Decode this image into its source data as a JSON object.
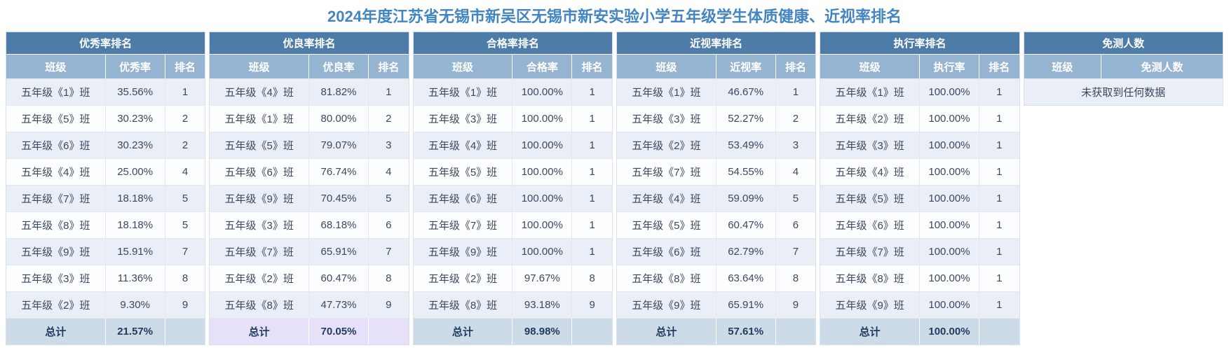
{
  "page": {
    "title": "2024年度江苏省无锡市新吴区无锡市新安实验小学五年级学生体质健康、近视率排名"
  },
  "colors": {
    "title_text": "#4285c2",
    "table_title_bg": "#4d7ca9",
    "column_header_bg": "#94b4d1",
    "row_odd_bg": "#e9eef7",
    "row_even_bg": "#fcfdfe",
    "total_row_bg_blue": "#ccdbe7",
    "total_row_bg_purple": "#e6e1f9"
  },
  "tables": [
    {
      "title": "优秀率排名",
      "columns": [
        "班级",
        "优秀率",
        "排名"
      ],
      "rows": [
        [
          "五年级《1》班",
          "35.56%",
          "1"
        ],
        [
          "五年级《5》班",
          "30.23%",
          "2"
        ],
        [
          "五年级《6》班",
          "30.23%",
          "2"
        ],
        [
          "五年级《4》班",
          "25.00%",
          "4"
        ],
        [
          "五年级《7》班",
          "18.18%",
          "5"
        ],
        [
          "五年级《8》班",
          "18.18%",
          "5"
        ],
        [
          "五年级《9》班",
          "15.91%",
          "7"
        ],
        [
          "五年级《3》班",
          "11.36%",
          "8"
        ],
        [
          "五年级《2》班",
          "9.30%",
          "9"
        ]
      ],
      "total": {
        "label": "总计",
        "value": "21.57%",
        "rank": ""
      },
      "total_variant": "blue"
    },
    {
      "title": "优良率排名",
      "columns": [
        "班级",
        "优良率",
        "排名"
      ],
      "rows": [
        [
          "五年级《4》班",
          "81.82%",
          "1"
        ],
        [
          "五年级《1》班",
          "80.00%",
          "2"
        ],
        [
          "五年级《5》班",
          "79.07%",
          "3"
        ],
        [
          "五年级《6》班",
          "76.74%",
          "4"
        ],
        [
          "五年级《9》班",
          "70.45%",
          "5"
        ],
        [
          "五年级《3》班",
          "68.18%",
          "6"
        ],
        [
          "五年级《7》班",
          "65.91%",
          "7"
        ],
        [
          "五年级《2》班",
          "60.47%",
          "8"
        ],
        [
          "五年级《8》班",
          "47.73%",
          "9"
        ]
      ],
      "total": {
        "label": "总计",
        "value": "70.05%",
        "rank": ""
      },
      "total_variant": "purple"
    },
    {
      "title": "合格率排名",
      "columns": [
        "班级",
        "合格率",
        "排名"
      ],
      "rows": [
        [
          "五年级《1》班",
          "100.00%",
          "1"
        ],
        [
          "五年级《3》班",
          "100.00%",
          "1"
        ],
        [
          "五年级《4》班",
          "100.00%",
          "1"
        ],
        [
          "五年级《5》班",
          "100.00%",
          "1"
        ],
        [
          "五年级《6》班",
          "100.00%",
          "1"
        ],
        [
          "五年级《7》班",
          "100.00%",
          "1"
        ],
        [
          "五年级《9》班",
          "100.00%",
          "1"
        ],
        [
          "五年级《2》班",
          "97.67%",
          "8"
        ],
        [
          "五年级《8》班",
          "93.18%",
          "9"
        ]
      ],
      "total": {
        "label": "总计",
        "value": "98.98%",
        "rank": ""
      },
      "total_variant": "blue"
    },
    {
      "title": "近视率排名",
      "columns": [
        "班级",
        "近视率",
        "排名"
      ],
      "rows": [
        [
          "五年级《1》班",
          "46.67%",
          "1"
        ],
        [
          "五年级《3》班",
          "52.27%",
          "2"
        ],
        [
          "五年级《2》班",
          "53.49%",
          "3"
        ],
        [
          "五年级《7》班",
          "54.55%",
          "4"
        ],
        [
          "五年级《4》班",
          "59.09%",
          "5"
        ],
        [
          "五年级《5》班",
          "60.47%",
          "6"
        ],
        [
          "五年级《6》班",
          "62.79%",
          "7"
        ],
        [
          "五年级《8》班",
          "63.64%",
          "8"
        ],
        [
          "五年级《9》班",
          "65.91%",
          "9"
        ]
      ],
      "total": {
        "label": "总计",
        "value": "57.61%",
        "rank": ""
      },
      "total_variant": "blue"
    },
    {
      "title": "执行率排名",
      "columns": [
        "班级",
        "执行率",
        "排名"
      ],
      "rows": [
        [
          "五年级《1》班",
          "100.00%",
          "1"
        ],
        [
          "五年级《2》班",
          "100.00%",
          "1"
        ],
        [
          "五年级《3》班",
          "100.00%",
          "1"
        ],
        [
          "五年级《4》班",
          "100.00%",
          "1"
        ],
        [
          "五年级《5》班",
          "100.00%",
          "1"
        ],
        [
          "五年级《6》班",
          "100.00%",
          "1"
        ],
        [
          "五年级《7》班",
          "100.00%",
          "1"
        ],
        [
          "五年级《8》班",
          "100.00%",
          "1"
        ],
        [
          "五年级《9》班",
          "100.00%",
          "1"
        ]
      ],
      "total": {
        "label": "总计",
        "value": "100.00%",
        "rank": ""
      },
      "total_variant": "blue"
    },
    {
      "title": "免测人数",
      "columns": [
        "班级",
        "免测人数"
      ],
      "rows": [],
      "empty_text": "未获取到任何数据"
    }
  ]
}
